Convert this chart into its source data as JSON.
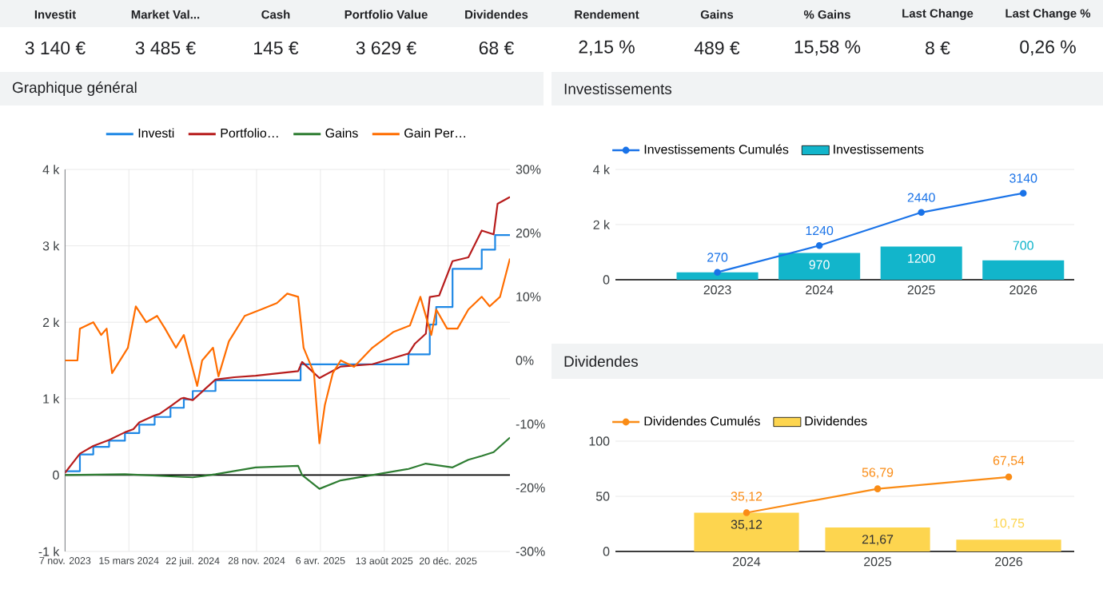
{
  "chart_data": [
    {
      "type": "other",
      "categories": [
        "Investit",
        "Market Val...",
        "Cash",
        "Portfolio Value",
        "Dividendes",
        "Rendement",
        "Gains",
        "% Gains",
        "Last Change",
        "Last Change %"
      ],
      "value_labels": [
        "3 140 €",
        "3 485 €",
        "145 €",
        "3 629 €",
        "68 €",
        "2,15 %",
        "489 €",
        "15,58 %",
        "8 €",
        "0,26 %"
      ]
    },
    {
      "type": "line",
      "title": "Graphique général",
      "legend": "top",
      "grid": true,
      "xlim": [
        "2023-11-07",
        "2026-04-24"
      ],
      "xticks": [
        {
          "value": "2023-11-07",
          "label": "7 nov. 2023"
        },
        {
          "value": "2024-03-15",
          "label": "15 mars 2024"
        },
        {
          "value": "2024-07-22",
          "label": "22 juil. 2024"
        },
        {
          "value": "2024-11-28",
          "label": "28 nov. 2024"
        },
        {
          "value": "2025-04-06",
          "label": "6 avr. 2025"
        },
        {
          "value": "2025-08-13",
          "label": "13 août 2025"
        },
        {
          "value": "2025-12-20",
          "label": "20 déc. 2025"
        }
      ],
      "ylim": [
        -1000,
        4000
      ],
      "yticks": [
        {
          "value": -1000,
          "label": "-1 k"
        },
        0,
        {
          "value": 1000,
          "label": "1 k"
        },
        {
          "value": 2000,
          "label": "2 k"
        },
        {
          "value": 3000,
          "label": "3 k"
        },
        {
          "value": 4000,
          "label": "4 k"
        }
      ],
      "y2lim": [
        -30,
        30
      ],
      "y2ticks": [
        {
          "value": -30,
          "label": "-30%"
        },
        {
          "value": -20,
          "label": "-20%"
        },
        {
          "value": -10,
          "label": "-10%"
        },
        {
          "value": 0,
          "label": "0%"
        },
        {
          "value": 10,
          "label": "10%"
        },
        {
          "value": 20,
          "label": "20%"
        },
        {
          "value": 30,
          "label": "30%"
        }
      ],
      "ref_lines": [
        {
          "axis": "y",
          "value": 0,
          "color": "#000000"
        }
      ],
      "series": [
        {
          "name": "Investi",
          "type": "step",
          "color": "#1e88e5",
          "x": [
            "2023-11-07",
            "2023-12-07",
            "2024-01-03",
            "2024-02-04",
            "2024-03-07",
            "2024-04-05",
            "2024-05-06",
            "2024-06-07",
            "2024-07-04",
            "2024-07-22",
            "2024-09-06",
            "2025-02-25",
            "2025-10-01",
            "2025-11-13",
            "2025-11-26",
            "2025-12-29",
            "2026-02-26",
            "2026-03-25",
            "2026-04-24"
          ],
          "values": [
            50,
            270,
            370,
            450,
            550,
            660,
            760,
            880,
            990,
            1100,
            1240,
            1450,
            1580,
            1970,
            2200,
            2700,
            2950,
            3140,
            3140
          ]
        },
        {
          "name": "Portfolio…",
          "color": "#b71c1c",
          "x": [
            "2023-11-07",
            "2023-12-07",
            "2024-01-03",
            "2024-02-04",
            "2024-03-07",
            "2024-03-24",
            "2024-04-05",
            "2024-05-06",
            "2024-05-16",
            "2024-06-07",
            "2024-06-28",
            "2024-07-04",
            "2024-07-22",
            "2024-09-06",
            "2024-10-14",
            "2024-11-26",
            "2025-02-20",
            "2025-02-28",
            "2025-04-04",
            "2025-05-17",
            "2025-07-20",
            "2025-10-01",
            "2025-10-14",
            "2025-11-05",
            "2025-11-13",
            "2025-12-02",
            "2025-12-29",
            "2026-01-30",
            "2026-02-26",
            "2026-03-22",
            "2026-03-30",
            "2026-04-24"
          ],
          "values": [
            30,
            280,
            380,
            460,
            560,
            600,
            690,
            780,
            800,
            900,
            1000,
            1010,
            980,
            1250,
            1280,
            1300,
            1360,
            1480,
            1270,
            1420,
            1450,
            1590,
            1720,
            1850,
            2330,
            2350,
            2800,
            2850,
            3200,
            3150,
            3550,
            3640
          ]
        },
        {
          "name": "Gains",
          "color": "#2e7d32",
          "x": [
            "2023-11-07",
            "2024-03-07",
            "2024-07-22",
            "2024-09-06",
            "2024-11-26",
            "2025-02-20",
            "2025-02-28",
            "2025-04-04",
            "2025-05-17",
            "2025-07-20",
            "2025-10-01",
            "2025-11-05",
            "2025-12-29",
            "2026-01-30",
            "2026-02-26",
            "2026-03-22",
            "2026-04-24"
          ],
          "values": [
            0,
            10,
            -30,
            10,
            100,
            120,
            0,
            -180,
            -70,
            0,
            80,
            150,
            100,
            200,
            250,
            300,
            490
          ]
        },
        {
          "name": "Gain Per…",
          "color": "#ff6d00",
          "axis": "y2",
          "x": [
            "2023-11-07",
            "2023-12-02",
            "2023-12-07",
            "2024-01-03",
            "2024-01-19",
            "2024-01-30",
            "2024-02-10",
            "2024-03-13",
            "2024-03-29",
            "2024-04-19",
            "2024-05-11",
            "2024-05-27",
            "2024-06-18",
            "2024-07-04",
            "2024-07-31",
            "2024-08-10",
            "2024-09-01",
            "2024-09-12",
            "2024-10-03",
            "2024-11-04",
            "2024-12-07",
            "2025-01-08",
            "2025-01-29",
            "2025-02-20",
            "2025-03-03",
            "2025-03-24",
            "2025-04-04",
            "2025-04-15",
            "2025-05-01",
            "2025-05-17",
            "2025-06-13",
            "2025-07-20",
            "2025-09-01",
            "2025-10-04",
            "2025-10-25",
            "2025-11-16",
            "2025-11-26",
            "2025-12-18",
            "2026-01-08",
            "2026-01-30",
            "2026-02-26",
            "2026-03-14",
            "2026-04-04",
            "2026-04-24"
          ],
          "values": [
            0,
            0,
            5,
            6,
            4,
            5,
            -2,
            2,
            8.5,
            6,
            7,
            5,
            2,
            4,
            -4,
            0,
            2,
            -2.5,
            3,
            7,
            8,
            9,
            10.5,
            10,
            2,
            -2,
            -13,
            -7,
            -2,
            0,
            -1,
            2,
            4.5,
            5.5,
            10,
            4,
            8,
            5,
            5,
            8,
            10,
            8.5,
            10,
            16
          ]
        }
      ]
    },
    {
      "type": "bar",
      "title": "Investissements",
      "legend": "top left",
      "grid": "y",
      "marker": "circle",
      "categories": [
        "2023",
        "2024",
        "2025",
        "2026"
      ],
      "ylim": [
        0,
        4000
      ],
      "yticks": [
        0,
        {
          "value": 2000,
          "label": "2 k"
        },
        {
          "value": 4000,
          "label": "4 k"
        }
      ],
      "series": [
        {
          "name": "Investissements Cumulés",
          "type": "line",
          "color": "#1a73e8",
          "values": [
            270,
            1240,
            2440,
            3140
          ],
          "value_labels": [
            "270",
            "1240",
            "2440",
            "3140"
          ]
        },
        {
          "name": "Investissements",
          "type": "bar",
          "color": "#12b5cb",
          "values": [
            270,
            970,
            1200,
            700
          ],
          "value_labels": [
            null,
            "970",
            "1200",
            "700"
          ]
        }
      ]
    },
    {
      "type": "bar",
      "title": "Dividendes",
      "legend": "top left",
      "grid": "y",
      "marker": "circle",
      "categories": [
        "2024",
        "2025",
        "2026"
      ],
      "ylim": [
        0,
        100
      ],
      "yticks": [
        0,
        50,
        100
      ],
      "series": [
        {
          "name": "Dividendes Cumulés",
          "type": "line",
          "color": "#fa8c16",
          "values": [
            35.12,
            56.79,
            67.54
          ],
          "value_labels": [
            "35,12",
            "56,79",
            "67,54"
          ]
        },
        {
          "name": "Dividendes",
          "type": "bar",
          "color": "#fdd54f",
          "values": [
            35.12,
            21.67,
            10.75
          ],
          "value_labels": [
            "35,12",
            "21,67",
            "10,75"
          ]
        }
      ]
    }
  ]
}
